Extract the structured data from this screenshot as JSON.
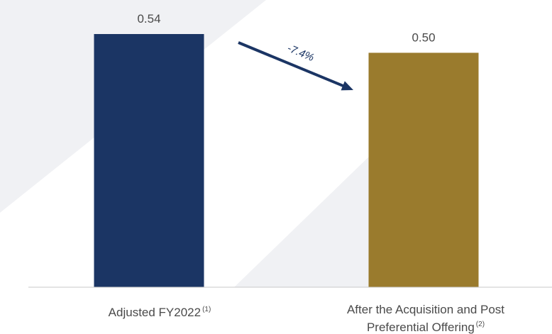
{
  "chart_data": {
    "type": "bar",
    "categories": [
      {
        "label": "Adjusted FY2022",
        "footnote": "(1)"
      },
      {
        "label_lines": [
          "After the Acquisition and Post",
          "Preferential Offering"
        ],
        "footnote": "(2)"
      }
    ],
    "values": [
      0.54,
      0.5
    ],
    "value_labels": [
      "0.54",
      "0.50"
    ],
    "bar_colors": [
      "#1b3564",
      "#9a7b2d"
    ],
    "ylim": [
      0,
      0.54
    ],
    "annotation": {
      "text": "-7.4%",
      "type": "arrow",
      "from_bar": 0,
      "to_bar": 1,
      "color": "#1b3564"
    },
    "title": "",
    "xlabel": "",
    "ylabel": "",
    "grid": false,
    "legend": "none"
  },
  "colors": {
    "background_shape": "#f0f1f4",
    "axis": "#c8c8c8",
    "label_text": "#4a4a4a"
  }
}
